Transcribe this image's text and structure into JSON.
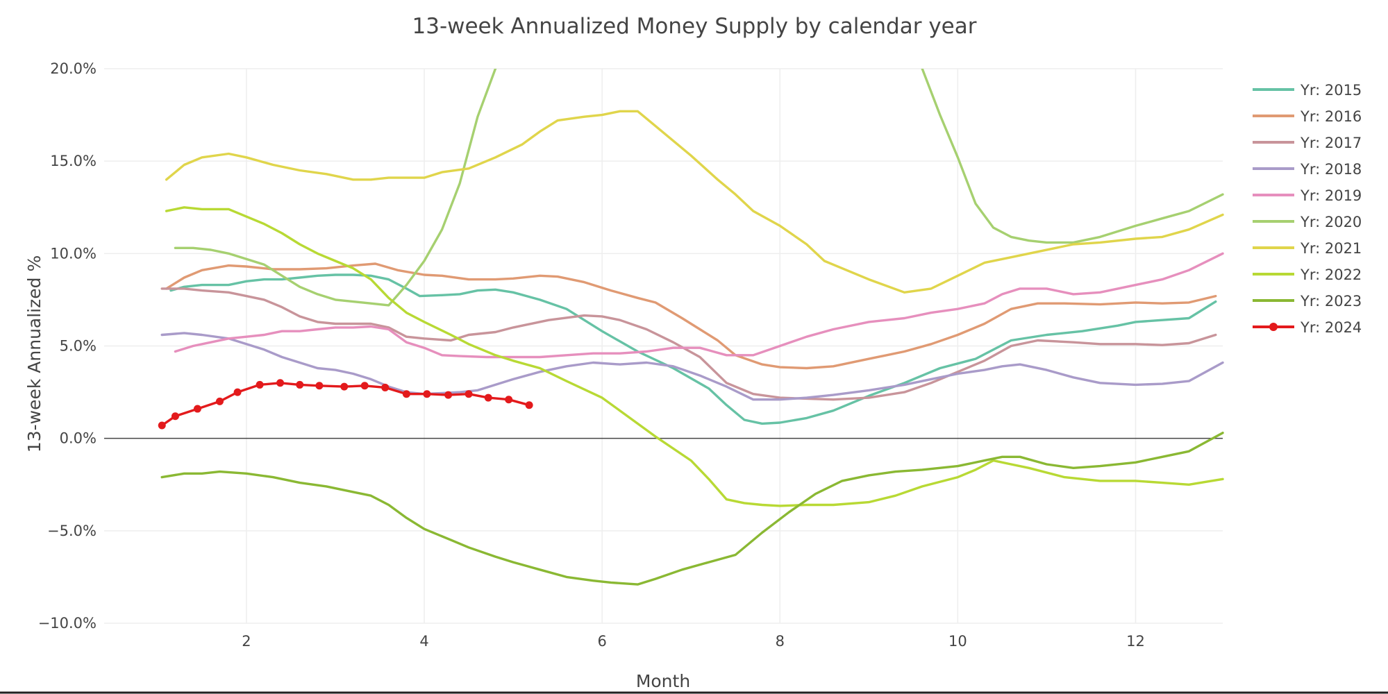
{
  "chart_data": {
    "type": "line",
    "title": "13-week Annualized Money Supply by calendar year",
    "xlabel": "Month",
    "ylabel": "13-week Annualized %",
    "xlim": [
      0.4,
      12.98
    ],
    "ylim": [
      -10,
      20
    ],
    "xticks": [
      2,
      4,
      6,
      8,
      10,
      12
    ],
    "xtick_labels": [
      "2",
      "4",
      "6",
      "8",
      "10",
      "12"
    ],
    "yticks": [
      -10,
      -5,
      0,
      5,
      10,
      15,
      20
    ],
    "ytick_labels": [
      "−10.0%",
      "−5.0%",
      "0.0%",
      "5.0%",
      "10.0%",
      "15.0%",
      "20.0%"
    ],
    "grid": true,
    "legend_position": "right",
    "series": [
      {
        "name": "Yr: 2015",
        "color": "#66c2a5",
        "markers": false,
        "x": [
          1.15,
          1.3,
          1.5,
          1.8,
          2.0,
          2.2,
          2.4,
          2.6,
          2.8,
          3.0,
          3.2,
          3.4,
          3.6,
          3.8,
          3.95,
          4.2,
          4.4,
          4.6,
          4.8,
          5.0,
          5.3,
          5.6,
          6.0,
          6.4,
          6.8,
          7.2,
          7.4,
          7.6,
          7.8,
          8.0,
          8.3,
          8.6,
          9.0,
          9.4,
          9.8,
          10.2,
          10.6,
          11.0,
          11.4,
          11.8,
          12.0,
          12.3,
          12.6,
          12.9
        ],
        "y": [
          8.0,
          8.2,
          8.3,
          8.3,
          8.5,
          8.6,
          8.6,
          8.7,
          8.8,
          8.85,
          8.85,
          8.8,
          8.6,
          8.1,
          7.7,
          7.75,
          7.8,
          8.0,
          8.05,
          7.9,
          7.5,
          7.0,
          5.8,
          4.7,
          3.8,
          2.7,
          1.8,
          1.0,
          0.8,
          0.85,
          1.1,
          1.5,
          2.3,
          3.0,
          3.8,
          4.3,
          5.3,
          5.6,
          5.8,
          6.1,
          6.3,
          6.4,
          6.5,
          7.4
        ]
      },
      {
        "name": "Yr: 2016",
        "color": "#e09a73",
        "markers": false,
        "x": [
          1.1,
          1.3,
          1.5,
          1.8,
          2.0,
          2.3,
          2.6,
          2.9,
          3.2,
          3.45,
          3.7,
          4.0,
          4.2,
          4.5,
          4.8,
          5.0,
          5.3,
          5.5,
          5.8,
          6.1,
          6.4,
          6.6,
          6.9,
          7.1,
          7.3,
          7.5,
          7.8,
          8.0,
          8.3,
          8.6,
          9.0,
          9.4,
          9.7,
          10.0,
          10.3,
          10.6,
          10.9,
          11.2,
          11.6,
          12.0,
          12.3,
          12.6,
          12.9
        ],
        "y": [
          8.1,
          8.7,
          9.1,
          9.35,
          9.3,
          9.15,
          9.15,
          9.2,
          9.35,
          9.45,
          9.1,
          8.85,
          8.8,
          8.6,
          8.6,
          8.65,
          8.8,
          8.75,
          8.45,
          8.0,
          7.6,
          7.35,
          6.5,
          5.9,
          5.3,
          4.5,
          4.0,
          3.85,
          3.8,
          3.9,
          4.3,
          4.7,
          5.1,
          5.6,
          6.2,
          7.0,
          7.3,
          7.3,
          7.25,
          7.35,
          7.3,
          7.35,
          7.7
        ]
      },
      {
        "name": "Yr: 2017",
        "color": "#c8949a",
        "markers": false,
        "x": [
          1.05,
          1.3,
          1.5,
          1.8,
          2.0,
          2.2,
          2.4,
          2.6,
          2.8,
          3.0,
          3.2,
          3.4,
          3.6,
          3.8,
          4.0,
          4.3,
          4.5,
          4.8,
          5.0,
          5.4,
          5.8,
          6.0,
          6.2,
          6.5,
          6.8,
          7.1,
          7.4,
          7.7,
          8.0,
          8.3,
          8.6,
          9.0,
          9.4,
          9.7,
          10.0,
          10.3,
          10.6,
          10.9,
          11.3,
          11.6,
          12.0,
          12.3,
          12.6,
          12.9
        ],
        "y": [
          8.1,
          8.1,
          8.0,
          7.9,
          7.7,
          7.5,
          7.1,
          6.6,
          6.3,
          6.2,
          6.2,
          6.2,
          6.0,
          5.5,
          5.4,
          5.3,
          5.6,
          5.75,
          6.0,
          6.4,
          6.65,
          6.6,
          6.4,
          5.9,
          5.2,
          4.4,
          3.0,
          2.4,
          2.2,
          2.15,
          2.1,
          2.2,
          2.5,
          3.0,
          3.6,
          4.2,
          5.0,
          5.3,
          5.2,
          5.1,
          5.1,
          5.05,
          5.15,
          5.6
        ]
      },
      {
        "name": "Yr: 2018",
        "color": "#a99bc9",
        "markers": false,
        "x": [
          1.05,
          1.3,
          1.5,
          1.8,
          2.0,
          2.2,
          2.4,
          2.6,
          2.8,
          3.0,
          3.2,
          3.4,
          3.6,
          3.8,
          4.0,
          4.2,
          4.4,
          4.6,
          4.8,
          5.0,
          5.3,
          5.6,
          5.9,
          6.2,
          6.5,
          6.8,
          7.1,
          7.4,
          7.7,
          8.0,
          8.3,
          8.6,
          9.0,
          9.4,
          9.7,
          10.0,
          10.3,
          10.5,
          10.7,
          11.0,
          11.3,
          11.6,
          12.0,
          12.3,
          12.6,
          12.98
        ],
        "y": [
          5.6,
          5.7,
          5.6,
          5.4,
          5.1,
          4.8,
          4.4,
          4.1,
          3.8,
          3.7,
          3.5,
          3.2,
          2.8,
          2.5,
          2.4,
          2.45,
          2.5,
          2.6,
          2.9,
          3.2,
          3.6,
          3.9,
          4.1,
          4.0,
          4.1,
          3.9,
          3.4,
          2.8,
          2.1,
          2.1,
          2.2,
          2.35,
          2.6,
          2.9,
          3.2,
          3.5,
          3.7,
          3.9,
          4.0,
          3.7,
          3.3,
          3.0,
          2.9,
          2.95,
          3.1,
          4.1
        ]
      },
      {
        "name": "Yr: 2019",
        "color": "#e68fbd",
        "markers": false,
        "x": [
          1.2,
          1.4,
          1.6,
          1.8,
          2.0,
          2.2,
          2.4,
          2.6,
          2.8,
          3.0,
          3.2,
          3.4,
          3.6,
          3.8,
          4.0,
          4.2,
          4.4,
          4.7,
          5.0,
          5.3,
          5.6,
          5.9,
          6.2,
          6.5,
          6.8,
          7.1,
          7.4,
          7.7,
          8.0,
          8.3,
          8.6,
          9.0,
          9.4,
          9.7,
          10.0,
          10.3,
          10.5,
          10.7,
          11.0,
          11.3,
          11.6,
          12.0,
          12.3,
          12.6,
          12.98
        ],
        "y": [
          4.7,
          5.0,
          5.2,
          5.4,
          5.5,
          5.6,
          5.8,
          5.8,
          5.9,
          6.0,
          6.0,
          6.05,
          5.9,
          5.2,
          4.9,
          4.5,
          4.45,
          4.4,
          4.4,
          4.4,
          4.5,
          4.6,
          4.6,
          4.7,
          4.9,
          4.9,
          4.5,
          4.5,
          5.0,
          5.5,
          5.9,
          6.3,
          6.5,
          6.8,
          7.0,
          7.3,
          7.8,
          8.1,
          8.1,
          7.8,
          7.9,
          8.3,
          8.6,
          9.1,
          10.0
        ]
      },
      {
        "name": "Yr: 2020",
        "color": "#a6d070",
        "markers": false,
        "x": [
          1.2,
          1.4,
          1.6,
          1.8,
          2.0,
          2.2,
          2.4,
          2.6,
          2.8,
          3.0,
          3.2,
          3.4,
          3.6,
          3.8,
          4.0,
          4.2,
          4.4,
          4.6,
          4.8,
          9.6,
          9.8,
          10.0,
          10.2,
          10.4,
          10.6,
          10.8,
          11.0,
          11.3,
          11.6,
          12.0,
          12.3,
          12.6,
          12.98
        ],
        "y": [
          10.3,
          10.3,
          10.2,
          10.0,
          9.7,
          9.4,
          8.8,
          8.2,
          7.8,
          7.5,
          7.4,
          7.3,
          7.2,
          8.3,
          9.6,
          11.3,
          13.8,
          17.4,
          20.0,
          20.0,
          17.5,
          15.2,
          12.7,
          11.4,
          10.9,
          10.7,
          10.6,
          10.6,
          10.9,
          11.5,
          11.9,
          12.3,
          13.2
        ]
      },
      {
        "name": "Yr: 2021",
        "color": "#e0d54b",
        "markers": false,
        "x": [
          1.1,
          1.3,
          1.5,
          1.8,
          2.0,
          2.3,
          2.6,
          2.9,
          3.2,
          3.4,
          3.6,
          3.8,
          4.0,
          4.2,
          4.5,
          4.8,
          5.1,
          5.3,
          5.5,
          5.8,
          6.0,
          6.2,
          6.4,
          6.6,
          7.0,
          7.3,
          7.5,
          7.7,
          8.0,
          8.3,
          8.5,
          9.0,
          9.4,
          9.7,
          10.0,
          10.3,
          10.6,
          10.9,
          11.3,
          11.6,
          12.0,
          12.3,
          12.6,
          12.98
        ],
        "y": [
          14.0,
          14.8,
          15.2,
          15.4,
          15.2,
          14.8,
          14.5,
          14.3,
          14.0,
          14.0,
          14.1,
          14.1,
          14.1,
          14.4,
          14.6,
          15.2,
          15.9,
          16.6,
          17.2,
          17.4,
          17.5,
          17.7,
          17.7,
          16.9,
          15.3,
          14.0,
          13.2,
          12.3,
          11.5,
          10.5,
          9.6,
          8.6,
          7.9,
          8.1,
          8.8,
          9.5,
          9.8,
          10.1,
          10.5,
          10.6,
          10.8,
          10.9,
          11.3,
          12.1
        ]
      },
      {
        "name": "Yr: 2022",
        "color": "#b8d934",
        "markers": false,
        "x": [
          1.1,
          1.3,
          1.5,
          1.8,
          2.0,
          2.2,
          2.4,
          2.6,
          2.8,
          3.0,
          3.2,
          3.4,
          3.6,
          3.8,
          4.0,
          4.3,
          4.5,
          4.8,
          5.0,
          5.3,
          5.6,
          6.0,
          6.2,
          6.4,
          6.6,
          7.0,
          7.2,
          7.4,
          7.6,
          7.8,
          8.0,
          8.3,
          8.6,
          9.0,
          9.3,
          9.6,
          10.0,
          10.2,
          10.4,
          10.6,
          10.8,
          11.2,
          11.6,
          12.0,
          12.3,
          12.6,
          12.98
        ],
        "y": [
          12.3,
          12.5,
          12.4,
          12.4,
          12.0,
          11.6,
          11.1,
          10.5,
          10.0,
          9.6,
          9.2,
          8.6,
          7.6,
          6.8,
          6.3,
          5.6,
          5.1,
          4.5,
          4.2,
          3.8,
          3.1,
          2.2,
          1.5,
          0.8,
          0.1,
          -1.2,
          -2.2,
          -3.3,
          -3.5,
          -3.6,
          -3.65,
          -3.6,
          -3.6,
          -3.45,
          -3.1,
          -2.6,
          -2.1,
          -1.7,
          -1.2,
          -1.4,
          -1.6,
          -2.1,
          -2.3,
          -2.3,
          -2.4,
          -2.5,
          -2.2
        ]
      },
      {
        "name": "Yr: 2023",
        "color": "#8ab833",
        "markers": false,
        "x": [
          1.05,
          1.3,
          1.5,
          1.7,
          2.0,
          2.3,
          2.6,
          2.9,
          3.2,
          3.4,
          3.6,
          3.8,
          4.0,
          4.3,
          4.5,
          4.8,
          5.0,
          5.3,
          5.6,
          5.9,
          6.1,
          6.4,
          6.6,
          6.9,
          7.2,
          7.5,
          7.8,
          8.1,
          8.4,
          8.7,
          9.0,
          9.3,
          9.6,
          10.0,
          10.3,
          10.5,
          10.7,
          11.0,
          11.3,
          11.6,
          12.0,
          12.3,
          12.6,
          12.98
        ],
        "y": [
          -2.1,
          -1.9,
          -1.9,
          -1.8,
          -1.9,
          -2.1,
          -2.4,
          -2.6,
          -2.9,
          -3.1,
          -3.6,
          -4.3,
          -4.9,
          -5.5,
          -5.9,
          -6.4,
          -6.7,
          -7.1,
          -7.5,
          -7.7,
          -7.8,
          -7.9,
          -7.6,
          -7.1,
          -6.7,
          -6.3,
          -5.1,
          -4.0,
          -3.0,
          -2.3,
          -2.0,
          -1.8,
          -1.7,
          -1.5,
          -1.2,
          -1.0,
          -1.0,
          -1.4,
          -1.6,
          -1.5,
          -1.3,
          -1.0,
          -0.7,
          0.3
        ]
      },
      {
        "name": "Yr: 2024",
        "color": "#e31a1c",
        "markers": true,
        "x": [
          1.05,
          1.2,
          1.45,
          1.7,
          1.9,
          2.15,
          2.38,
          2.6,
          2.82,
          3.1,
          3.33,
          3.56,
          3.8,
          4.03,
          4.27,
          4.5,
          4.72,
          4.95,
          5.18
        ],
        "y": [
          0.7,
          1.2,
          1.6,
          2.0,
          2.5,
          2.9,
          3.0,
          2.9,
          2.85,
          2.8,
          2.85,
          2.75,
          2.4,
          2.4,
          2.35,
          2.4,
          2.2,
          2.1,
          1.8
        ]
      }
    ]
  }
}
